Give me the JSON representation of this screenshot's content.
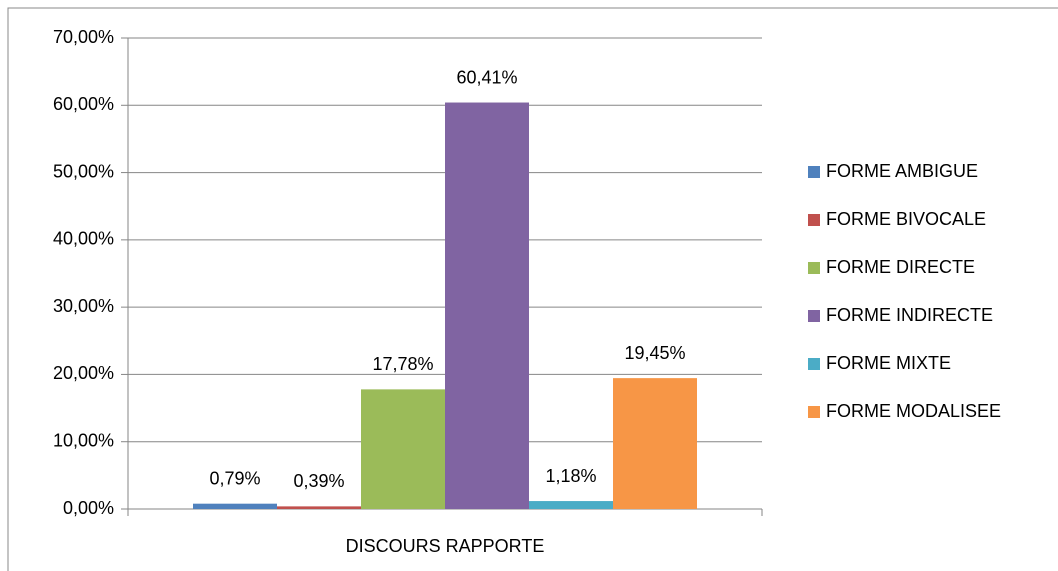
{
  "chart_data": {
    "type": "bar",
    "categories": [
      "DISCOURS RAPPORTE"
    ],
    "series": [
      {
        "name": "FORME AMBIGUE",
        "color": "#4f81bd",
        "values": [
          0.79
        ],
        "value_labels": [
          "0,79%"
        ]
      },
      {
        "name": "FORME BIVOCALE",
        "color": "#c0504d",
        "values": [
          0.39
        ],
        "value_labels": [
          "0,39%"
        ]
      },
      {
        "name": "FORME DIRECTE",
        "color": "#9bbb59",
        "values": [
          17.78
        ],
        "value_labels": [
          "17,78%"
        ]
      },
      {
        "name": "FORME INDIRECTE",
        "color": "#8064a2",
        "values": [
          60.41
        ],
        "value_labels": [
          "60,41%"
        ]
      },
      {
        "name": "FORME MIXTE",
        "color": "#4bacc6",
        "values": [
          1.18
        ],
        "value_labels": [
          "1,18%"
        ]
      },
      {
        "name": "FORME MODALISEE",
        "color": "#f79646",
        "values": [
          19.45
        ],
        "value_labels": [
          "19,45%"
        ]
      }
    ],
    "ylim": [
      0,
      70
    ],
    "yticks": [
      {
        "value": 0,
        "label": "0,00%"
      },
      {
        "value": 10,
        "label": "10,00%"
      },
      {
        "value": 20,
        "label": "20,00%"
      },
      {
        "value": 30,
        "label": "30,00%"
      },
      {
        "value": 40,
        "label": "40,00%"
      },
      {
        "value": 50,
        "label": "50,00%"
      },
      {
        "value": 60,
        "label": "60,00%"
      },
      {
        "value": 70,
        "label": "70,00%"
      }
    ],
    "grid": true,
    "legend": "right"
  }
}
